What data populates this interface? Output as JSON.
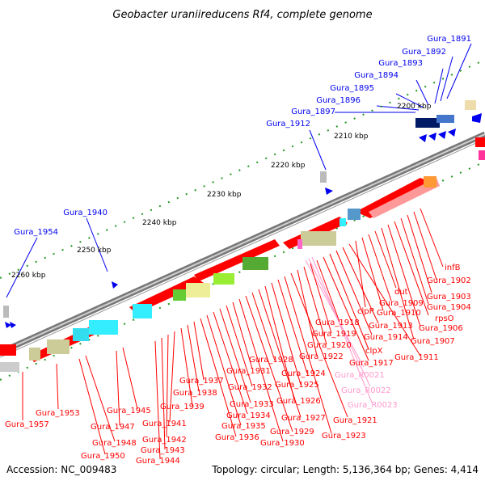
{
  "title": "Geobacter uraniireducens Rf4, complete genome",
  "footer": {
    "accession": "Accession: NC_009483",
    "summary": "Topology: circular; Length: 5,136,364 bp; Genes: 4,414"
  },
  "scale_ticks": [
    "2200 kbp",
    "2210 kbp",
    "2220 kbp",
    "2230 kbp",
    "2240 kbp",
    "2250 kbp",
    "2260 kbp"
  ],
  "colors": {
    "gene_plus": "#0000ee",
    "gene_minus": "#ff0000",
    "rna": "#ff99cc",
    "backbone": "#888888",
    "tick": "#006600"
  },
  "labels_blue": [
    "Gura_1891",
    "Gura_1892",
    "Gura_1893",
    "Gura_1894",
    "Gura_1895",
    "Gura_1896",
    "Gura_1897",
    "Gura_1912",
    "Gura_1940",
    "Gura_1954"
  ],
  "labels_red": [
    "infB",
    "Gura_1902",
    "Gura_1903",
    "Gura_1904",
    "rpsO",
    "Gura_1906",
    "Gura_1907",
    "dut",
    "Gura_1909",
    "Gura_1910",
    "clpP",
    "Gura_1911",
    "Gura_1913",
    "Gura_1914",
    "clpX",
    "Gura_1917",
    "Gura_1918",
    "Gura_1919",
    "Gura_1920",
    "Gura_1922",
    "Gura_1921",
    "Gura_1923",
    "Gura_1924",
    "Gura_1925",
    "Gura_1926",
    "Gura_1927",
    "Gura_1928",
    "Gura_1929",
    "Gura_1930",
    "Gura_1931",
    "Gura_1932",
    "Gura_1933",
    "Gura_1934",
    "Gura_1935",
    "Gura_1936",
    "Gura_1937",
    "Gura_1938",
    "Gura_1939",
    "Gura_1941",
    "Gura_1942",
    "Gura_1943",
    "Gura_1944",
    "Gura_1945",
    "Gura_1947",
    "Gura_1948",
    "Gura_1950",
    "Gura_1953",
    "Gura_1957"
  ],
  "labels_rna": [
    "Gura_R0021",
    "Gura_R0022",
    "Gura_R0023"
  ]
}
